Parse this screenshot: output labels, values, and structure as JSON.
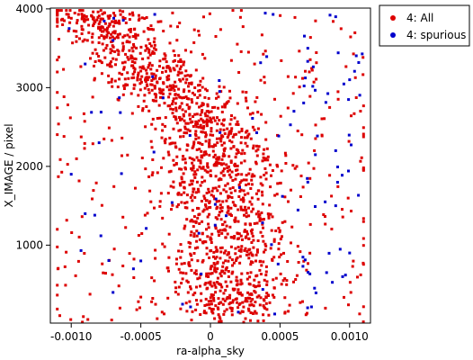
{
  "chart_data": {
    "type": "scatter",
    "xlabel": "ra-alpha_sky",
    "ylabel": "X_IMAGE / pixel",
    "xlim": [
      -0.00115,
      0.00115
    ],
    "ylim": [
      10,
      4010
    ],
    "x_ticks": [
      -0.001,
      -0.0005,
      0.0,
      0.0005,
      0.001
    ],
    "x_tick_labels": [
      "-0.0010",
      "-0.0005",
      "0",
      "0.0005",
      "0.0010"
    ],
    "y_ticks": [
      1000,
      2000,
      3000,
      4000
    ],
    "y_tick_labels": [
      "1000",
      "2000",
      "3000",
      "4000"
    ],
    "legend_position": "top-right, outside plot",
    "grid": false,
    "series": [
      {
        "name": "4: All",
        "color": "#dd0000",
        "marker": "square",
        "approx_point_count": 1800,
        "distribution": "dense diagonal band from upper-left (x≈-0.0009, y≈3800) to lower-center (x≈0.0002, y≈1000), with sparse background across full range",
        "points": [
          [
            -0.00105,
            3850
          ],
          [
            -0.00098,
            3720
          ],
          [
            -0.00092,
            3900
          ],
          [
            -0.00085,
            3640
          ],
          [
            -0.0008,
            3810
          ],
          [
            -0.00075,
            3500
          ],
          [
            -0.0007,
            3700
          ],
          [
            -0.00066,
            3420
          ],
          [
            -0.0006,
            3580
          ],
          [
            -0.00056,
            3330
          ],
          [
            -0.0005,
            3210
          ],
          [
            -0.00045,
            3100
          ],
          [
            -0.0004,
            3020
          ],
          [
            -0.00035,
            2950
          ],
          [
            -0.0003,
            2880
          ],
          [
            -0.00025,
            2800
          ],
          [
            -0.0002,
            2720
          ],
          [
            -0.00015,
            2650
          ],
          [
            -0.0001,
            2560
          ],
          [
            -5e-05,
            2480
          ],
          [
            0.0,
            2400
          ],
          [
            5e-05,
            2300
          ],
          [
            0.0001,
            2200
          ],
          [
            0.00015,
            2050
          ],
          [
            0.0002,
            1900
          ],
          [
            0.00022,
            1700
          ],
          [
            0.00018,
            1500
          ],
          [
            0.0002,
            1300
          ],
          [
            0.00015,
            1100
          ],
          [
            0.0001,
            900
          ],
          [
            5e-05,
            700
          ],
          [
            0.0,
            500
          ],
          [
            -0.0001,
            300
          ],
          [
            0.0003,
            1600
          ],
          [
            0.0004,
            2100
          ]
        ]
      },
      {
        "name": "4: spurious",
        "color": "#0000cc",
        "marker": "square",
        "approx_point_count": 90,
        "points": [
          [
            -0.0004,
            3930
          ],
          [
            0.00045,
            3930
          ],
          [
            0.0009,
            3900
          ],
          [
            -0.0007,
            3600
          ],
          [
            0.0007,
            3500
          ],
          [
            -0.0009,
            3300
          ],
          [
            0.001,
            3100
          ],
          [
            0.0006,
            2700
          ],
          [
            -0.0008,
            2300
          ],
          [
            0.0009,
            2200
          ],
          [
            -0.001,
            1900
          ],
          [
            0.0007,
            1800
          ],
          [
            0.0009,
            1500
          ],
          [
            -0.0009,
            1400
          ],
          [
            0.001,
            900
          ],
          [
            -0.0005,
            800
          ],
          [
            0.00095,
            600
          ],
          [
            -0.0007,
            400
          ],
          [
            -0.0002,
            250
          ],
          [
            0.0002,
            150
          ]
        ]
      }
    ]
  }
}
